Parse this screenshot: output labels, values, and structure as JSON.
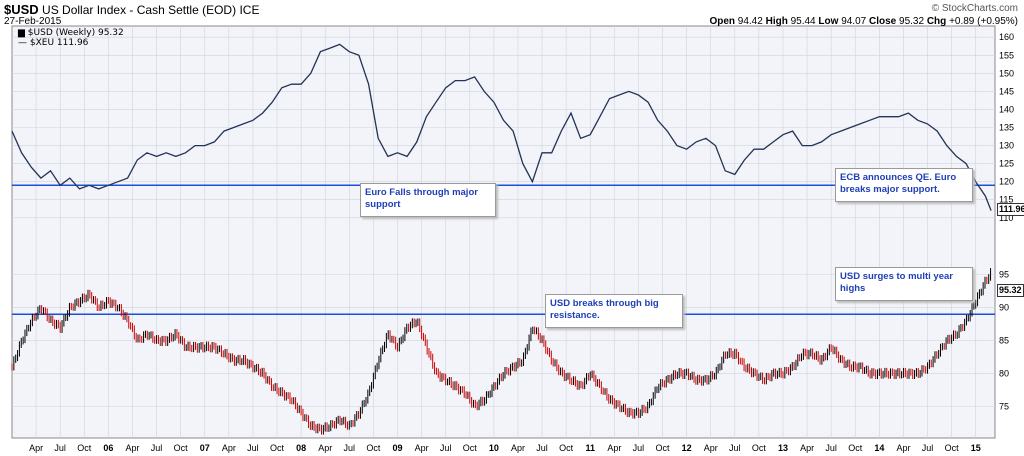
{
  "header": {
    "symbol": "$USD",
    "name": "US Dollar Index - Cash Settle (EOD)",
    "exchange": "ICE",
    "date": "27-Feb-2015",
    "brand": "© StockCharts.com",
    "open_label": "Open",
    "open": "94.42",
    "high_label": "High",
    "high": "95.44",
    "low_label": "Low",
    "low": "94.07",
    "close_label": "Close",
    "close": "95.32",
    "chg_label": "Chg",
    "chg": "+0.89 (+0.95%)"
  },
  "legend": {
    "usd": "$USD (Weekly) 95.32",
    "xeu": "$XEU 111.96"
  },
  "annotations": {
    "euro_support": "Euro Falls through major support",
    "ecb_qe": "ECB announces QE. Euro breaks major support.",
    "usd_resistance": "USD breaks through big resistance.",
    "usd_surge": "USD surges to multi year highs"
  },
  "tags": {
    "xeu_last": "111.96",
    "usd_last": "95.32"
  },
  "colors": {
    "up": "#000000",
    "down": "#cc0000",
    "xeu_line": "#223355",
    "hline": "#1a50d8",
    "grid": "#cfd4dc",
    "bg": "#f3f4f9"
  },
  "chart_data": [
    {
      "type": "line",
      "name": "$XEU",
      "yaxis_ticks": [
        110,
        115,
        120,
        125,
        130,
        135,
        140,
        145,
        150,
        155,
        160
      ],
      "ylim": [
        108,
        162
      ],
      "reference_line": 119,
      "points": [
        [
          2005.0,
          134
        ],
        [
          2005.1,
          128
        ],
        [
          2005.2,
          124
        ],
        [
          2005.3,
          121
        ],
        [
          2005.4,
          123
        ],
        [
          2005.5,
          119
        ],
        [
          2005.6,
          121
        ],
        [
          2005.7,
          118
        ],
        [
          2005.8,
          119
        ],
        [
          2005.9,
          118
        ],
        [
          2006.0,
          119
        ],
        [
          2006.1,
          120
        ],
        [
          2006.2,
          121
        ],
        [
          2006.3,
          126
        ],
        [
          2006.4,
          128
        ],
        [
          2006.5,
          127
        ],
        [
          2006.6,
          128
        ],
        [
          2006.7,
          127
        ],
        [
          2006.8,
          128
        ],
        [
          2006.9,
          130
        ],
        [
          2007.0,
          130
        ],
        [
          2007.1,
          131
        ],
        [
          2007.2,
          134
        ],
        [
          2007.3,
          135
        ],
        [
          2007.4,
          136
        ],
        [
          2007.5,
          137
        ],
        [
          2007.6,
          139
        ],
        [
          2007.7,
          142
        ],
        [
          2007.8,
          146
        ],
        [
          2007.9,
          147
        ],
        [
          2008.0,
          147
        ],
        [
          2008.1,
          150
        ],
        [
          2008.2,
          156
        ],
        [
          2008.3,
          157
        ],
        [
          2008.4,
          158
        ],
        [
          2008.5,
          156
        ],
        [
          2008.6,
          155
        ],
        [
          2008.7,
          147
        ],
        [
          2008.8,
          132
        ],
        [
          2008.9,
          127
        ],
        [
          2009.0,
          128
        ],
        [
          2009.1,
          127
        ],
        [
          2009.2,
          131
        ],
        [
          2009.3,
          138
        ],
        [
          2009.4,
          142
        ],
        [
          2009.5,
          146
        ],
        [
          2009.6,
          148
        ],
        [
          2009.7,
          148
        ],
        [
          2009.8,
          149
        ],
        [
          2009.9,
          145
        ],
        [
          2010.0,
          142
        ],
        [
          2010.1,
          137
        ],
        [
          2010.2,
          134
        ],
        [
          2010.3,
          125
        ],
        [
          2010.4,
          120
        ],
        [
          2010.5,
          128
        ],
        [
          2010.6,
          128
        ],
        [
          2010.7,
          134
        ],
        [
          2010.8,
          139
        ],
        [
          2010.9,
          132
        ],
        [
          2011.0,
          133
        ],
        [
          2011.1,
          138
        ],
        [
          2011.2,
          143
        ],
        [
          2011.3,
          144
        ],
        [
          2011.4,
          145
        ],
        [
          2011.5,
          144
        ],
        [
          2011.6,
          142
        ],
        [
          2011.7,
          137
        ],
        [
          2011.8,
          134
        ],
        [
          2011.9,
          130
        ],
        [
          2012.0,
          129
        ],
        [
          2012.1,
          131
        ],
        [
          2012.2,
          132
        ],
        [
          2012.3,
          130
        ],
        [
          2012.4,
          123
        ],
        [
          2012.5,
          122
        ],
        [
          2012.6,
          126
        ],
        [
          2012.7,
          129
        ],
        [
          2012.8,
          129
        ],
        [
          2012.9,
          131
        ],
        [
          2013.0,
          133
        ],
        [
          2013.1,
          134
        ],
        [
          2013.2,
          130
        ],
        [
          2013.3,
          130
        ],
        [
          2013.4,
          131
        ],
        [
          2013.5,
          133
        ],
        [
          2013.6,
          134
        ],
        [
          2013.7,
          135
        ],
        [
          2013.8,
          136
        ],
        [
          2013.9,
          137
        ],
        [
          2014.0,
          138
        ],
        [
          2014.1,
          138
        ],
        [
          2014.2,
          138
        ],
        [
          2014.3,
          139
        ],
        [
          2014.4,
          137
        ],
        [
          2014.5,
          136
        ],
        [
          2014.6,
          134
        ],
        [
          2014.7,
          130
        ],
        [
          2014.8,
          127
        ],
        [
          2014.9,
          125
        ],
        [
          2015.0,
          120
        ],
        [
          2015.1,
          116
        ],
        [
          2015.16,
          112
        ]
      ]
    },
    {
      "type": "bar",
      "name": "$USD",
      "yaxis_ticks": [
        75,
        80,
        85,
        90,
        95
      ],
      "ylim": [
        70.5,
        98
      ],
      "reference_line": 89,
      "points": [
        [
          2005.0,
          81
        ],
        [
          2005.1,
          85
        ],
        [
          2005.2,
          88
        ],
        [
          2005.3,
          90
        ],
        [
          2005.4,
          88
        ],
        [
          2005.5,
          87
        ],
        [
          2005.6,
          90
        ],
        [
          2005.7,
          91
        ],
        [
          2005.8,
          92
        ],
        [
          2005.9,
          90
        ],
        [
          2006.0,
          91
        ],
        [
          2006.1,
          90
        ],
        [
          2006.2,
          88
        ],
        [
          2006.3,
          85
        ],
        [
          2006.4,
          86
        ],
        [
          2006.5,
          85
        ],
        [
          2006.6,
          85
        ],
        [
          2006.7,
          86
        ],
        [
          2006.8,
          84
        ],
        [
          2006.9,
          84
        ],
        [
          2007.0,
          84
        ],
        [
          2007.1,
          84
        ],
        [
          2007.2,
          83
        ],
        [
          2007.3,
          82
        ],
        [
          2007.4,
          82
        ],
        [
          2007.5,
          81
        ],
        [
          2007.6,
          80
        ],
        [
          2007.7,
          78
        ],
        [
          2007.8,
          77
        ],
        [
          2007.9,
          76
        ],
        [
          2008.0,
          74
        ],
        [
          2008.1,
          72
        ],
        [
          2008.2,
          71.5
        ],
        [
          2008.3,
          72
        ],
        [
          2008.4,
          73
        ],
        [
          2008.5,
          72
        ],
        [
          2008.6,
          74
        ],
        [
          2008.7,
          77
        ],
        [
          2008.8,
          82
        ],
        [
          2008.9,
          86
        ],
        [
          2009.0,
          84
        ],
        [
          2009.1,
          87
        ],
        [
          2009.2,
          88
        ],
        [
          2009.3,
          84
        ],
        [
          2009.4,
          80
        ],
        [
          2009.5,
          79
        ],
        [
          2009.6,
          78
        ],
        [
          2009.7,
          77
        ],
        [
          2009.8,
          75
        ],
        [
          2009.9,
          76
        ],
        [
          2010.0,
          78
        ],
        [
          2010.1,
          80
        ],
        [
          2010.2,
          81
        ],
        [
          2010.3,
          82
        ],
        [
          2010.4,
          87
        ],
        [
          2010.5,
          85
        ],
        [
          2010.6,
          82
        ],
        [
          2010.7,
          80
        ],
        [
          2010.8,
          79
        ],
        [
          2010.9,
          78
        ],
        [
          2011.0,
          80
        ],
        [
          2011.1,
          78
        ],
        [
          2011.2,
          76
        ],
        [
          2011.3,
          75
        ],
        [
          2011.4,
          74
        ],
        [
          2011.5,
          74
        ],
        [
          2011.6,
          75
        ],
        [
          2011.7,
          78
        ],
        [
          2011.8,
          79
        ],
        [
          2011.9,
          80
        ],
        [
          2012.0,
          80
        ],
        [
          2012.1,
          79
        ],
        [
          2012.2,
          79
        ],
        [
          2012.3,
          80
        ],
        [
          2012.4,
          83
        ],
        [
          2012.5,
          83
        ],
        [
          2012.6,
          81
        ],
        [
          2012.7,
          80
        ],
        [
          2012.8,
          79
        ],
        [
          2012.9,
          80
        ],
        [
          2013.0,
          80
        ],
        [
          2013.1,
          81
        ],
        [
          2013.2,
          83
        ],
        [
          2013.3,
          83
        ],
        [
          2013.4,
          82
        ],
        [
          2013.5,
          84
        ],
        [
          2013.6,
          82
        ],
        [
          2013.7,
          81
        ],
        [
          2013.8,
          81
        ],
        [
          2013.9,
          80
        ],
        [
          2014.0,
          80
        ],
        [
          2014.1,
          80
        ],
        [
          2014.2,
          80
        ],
        [
          2014.3,
          80
        ],
        [
          2014.4,
          80
        ],
        [
          2014.5,
          81
        ],
        [
          2014.6,
          83
        ],
        [
          2014.7,
          85
        ],
        [
          2014.8,
          86
        ],
        [
          2014.9,
          88
        ],
        [
          2015.0,
          91
        ],
        [
          2015.1,
          94
        ],
        [
          2015.16,
          95.3
        ]
      ]
    }
  ],
  "x_axis": {
    "labels": [
      {
        "t": 2005.25,
        "label": "Apr"
      },
      {
        "t": 2005.5,
        "label": "Jul"
      },
      {
        "t": 2005.75,
        "label": "Oct"
      },
      {
        "t": 2006.0,
        "label": "06"
      },
      {
        "t": 2006.25,
        "label": "Apr"
      },
      {
        "t": 2006.5,
        "label": "Jul"
      },
      {
        "t": 2006.75,
        "label": "Oct"
      },
      {
        "t": 2007.0,
        "label": "07"
      },
      {
        "t": 2007.25,
        "label": "Apr"
      },
      {
        "t": 2007.5,
        "label": "Jul"
      },
      {
        "t": 2007.75,
        "label": "Oct"
      },
      {
        "t": 2008.0,
        "label": "08"
      },
      {
        "t": 2008.25,
        "label": "Apr"
      },
      {
        "t": 2008.5,
        "label": "Jul"
      },
      {
        "t": 2008.75,
        "label": "Oct"
      },
      {
        "t": 2009.0,
        "label": "09"
      },
      {
        "t": 2009.25,
        "label": "Apr"
      },
      {
        "t": 2009.5,
        "label": "Jul"
      },
      {
        "t": 2009.75,
        "label": "Oct"
      },
      {
        "t": 2010.0,
        "label": "10"
      },
      {
        "t": 2010.25,
        "label": "Apr"
      },
      {
        "t": 2010.5,
        "label": "Jul"
      },
      {
        "t": 2010.75,
        "label": "Oct"
      },
      {
        "t": 2011.0,
        "label": "11"
      },
      {
        "t": 2011.25,
        "label": "Apr"
      },
      {
        "t": 2011.5,
        "label": "Jul"
      },
      {
        "t": 2011.75,
        "label": "Oct"
      },
      {
        "t": 2012.0,
        "label": "12"
      },
      {
        "t": 2012.25,
        "label": "Apr"
      },
      {
        "t": 2012.5,
        "label": "Jul"
      },
      {
        "t": 2012.75,
        "label": "Oct"
      },
      {
        "t": 2013.0,
        "label": "13"
      },
      {
        "t": 2013.25,
        "label": "Apr"
      },
      {
        "t": 2013.5,
        "label": "Jul"
      },
      {
        "t": 2013.75,
        "label": "Oct"
      },
      {
        "t": 2014.0,
        "label": "14"
      },
      {
        "t": 2014.25,
        "label": "Apr"
      },
      {
        "t": 2014.5,
        "label": "Jul"
      },
      {
        "t": 2014.75,
        "label": "Oct"
      },
      {
        "t": 2015.0,
        "label": "15"
      }
    ]
  }
}
